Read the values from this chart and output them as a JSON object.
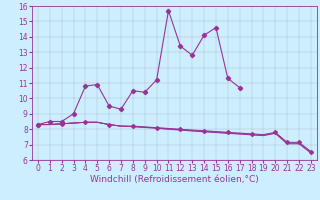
{
  "xlabel": "Windchill (Refroidissement éolien,°C)",
  "bg_color": "#cceeff",
  "line_color": "#993399",
  "ylim": [
    6,
    16
  ],
  "xlim": [
    -0.5,
    23.5
  ],
  "yticks": [
    6,
    7,
    8,
    9,
    10,
    11,
    12,
    13,
    14,
    15,
    16
  ],
  "xticks": [
    0,
    1,
    2,
    3,
    4,
    5,
    6,
    7,
    8,
    9,
    10,
    11,
    12,
    13,
    14,
    15,
    16,
    17,
    18,
    19,
    20,
    21,
    22,
    23
  ],
  "main_x": [
    0,
    1,
    2,
    3,
    4,
    5,
    6,
    7,
    8,
    9,
    10,
    11,
    12,
    13,
    14,
    15,
    16,
    17
  ],
  "main_y": [
    8.3,
    8.5,
    8.5,
    9.0,
    10.8,
    10.9,
    9.5,
    9.3,
    10.5,
    10.4,
    11.2,
    15.7,
    13.4,
    12.8,
    14.1,
    14.6,
    11.3,
    10.7
  ],
  "flat1_x": [
    0,
    1,
    2,
    3,
    4,
    5,
    6,
    7,
    8,
    9,
    10,
    11,
    12,
    13,
    14,
    15,
    16,
    17,
    18,
    19,
    20,
    21,
    22,
    23
  ],
  "flat1_y": [
    8.3,
    8.3,
    8.35,
    8.4,
    8.45,
    8.45,
    8.3,
    8.2,
    8.2,
    8.15,
    8.1,
    8.05,
    8.0,
    7.95,
    7.9,
    7.85,
    7.8,
    7.75,
    7.7,
    7.65,
    7.8,
    7.15,
    7.15,
    6.55
  ],
  "flat2_x": [
    0,
    1,
    2,
    3,
    4,
    5,
    6,
    7,
    8,
    9,
    10,
    11,
    12,
    13,
    14,
    15,
    16,
    17,
    18,
    19,
    20,
    21,
    22,
    23
  ],
  "flat2_y": [
    8.3,
    8.3,
    8.35,
    8.4,
    8.45,
    8.45,
    8.3,
    8.2,
    8.18,
    8.13,
    8.08,
    8.02,
    7.97,
    7.91,
    7.86,
    7.81,
    7.76,
    7.71,
    7.66,
    7.61,
    7.76,
    7.1,
    7.1,
    6.5
  ],
  "flat3_x": [
    0,
    1,
    2,
    3,
    4,
    5,
    6,
    7,
    8,
    9,
    10,
    11,
    12,
    13,
    14,
    15,
    16,
    17,
    18,
    19,
    20,
    21,
    22,
    23
  ],
  "flat3_y": [
    8.3,
    8.3,
    8.35,
    8.4,
    8.45,
    8.45,
    8.3,
    8.2,
    8.16,
    8.11,
    8.06,
    7.99,
    7.94,
    7.88,
    7.83,
    7.78,
    7.73,
    7.68,
    7.63,
    7.58,
    7.73,
    7.05,
    7.05,
    6.45
  ],
  "mark_flat_x": [
    0,
    2,
    4,
    6,
    8,
    10,
    12,
    14,
    16,
    18,
    20,
    21,
    22,
    23
  ],
  "mark_flat_y": [
    8.3,
    8.35,
    8.45,
    8.3,
    8.2,
    8.1,
    8.0,
    7.9,
    7.8,
    7.7,
    7.8,
    7.15,
    7.15,
    6.55
  ],
  "grid_color": "#999999",
  "tick_fontsize": 5.5,
  "label_fontsize": 6.5
}
